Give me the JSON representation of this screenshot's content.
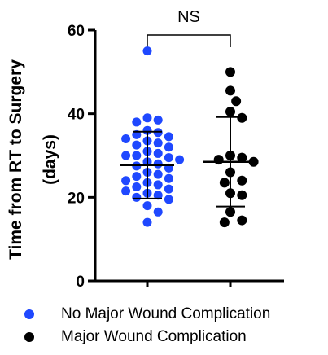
{
  "chart_data": {
    "type": "scatter",
    "ylabel_line1": "Time from RT to Surgery",
    "ylabel_line2": "(days)",
    "ylim": [
      0,
      60
    ],
    "yticks": [
      "0",
      "20",
      "40",
      "60"
    ],
    "significance_label": "NS",
    "series": [
      {
        "name": "No Major Wound Complication",
        "color": "#1f48ff",
        "values": [
          55,
          39,
          38.5,
          38,
          36,
          35.5,
          35,
          34.5,
          34,
          33.5,
          33,
          32.5,
          32,
          31,
          30.5,
          30,
          30,
          29.5,
          29,
          28.5,
          28,
          27.5,
          27,
          26,
          25.5,
          25,
          24.5,
          24,
          23.5,
          23,
          22.5,
          22,
          21.5,
          21,
          20.5,
          20,
          19.5,
          18,
          16.5,
          14
        ],
        "mean": 27.7,
        "sd_low": 19.7,
        "sd_high": 35.7
      },
      {
        "name": "Major Wound Complication",
        "color": "#000000",
        "values": [
          50,
          45.5,
          43,
          40.5,
          39,
          30,
          29.5,
          29,
          28.5,
          26,
          24,
          23.5,
          21,
          20.5,
          16.5,
          14.5,
          14
        ],
        "mean": 28.5,
        "sd_low": 17.8,
        "sd_high": 39.2
      }
    ]
  },
  "legend": {
    "items": [
      {
        "label": "No Major Wound Complication",
        "color": "#1f48ff"
      },
      {
        "label": "Major Wound Complication",
        "color": "#000000"
      }
    ]
  }
}
